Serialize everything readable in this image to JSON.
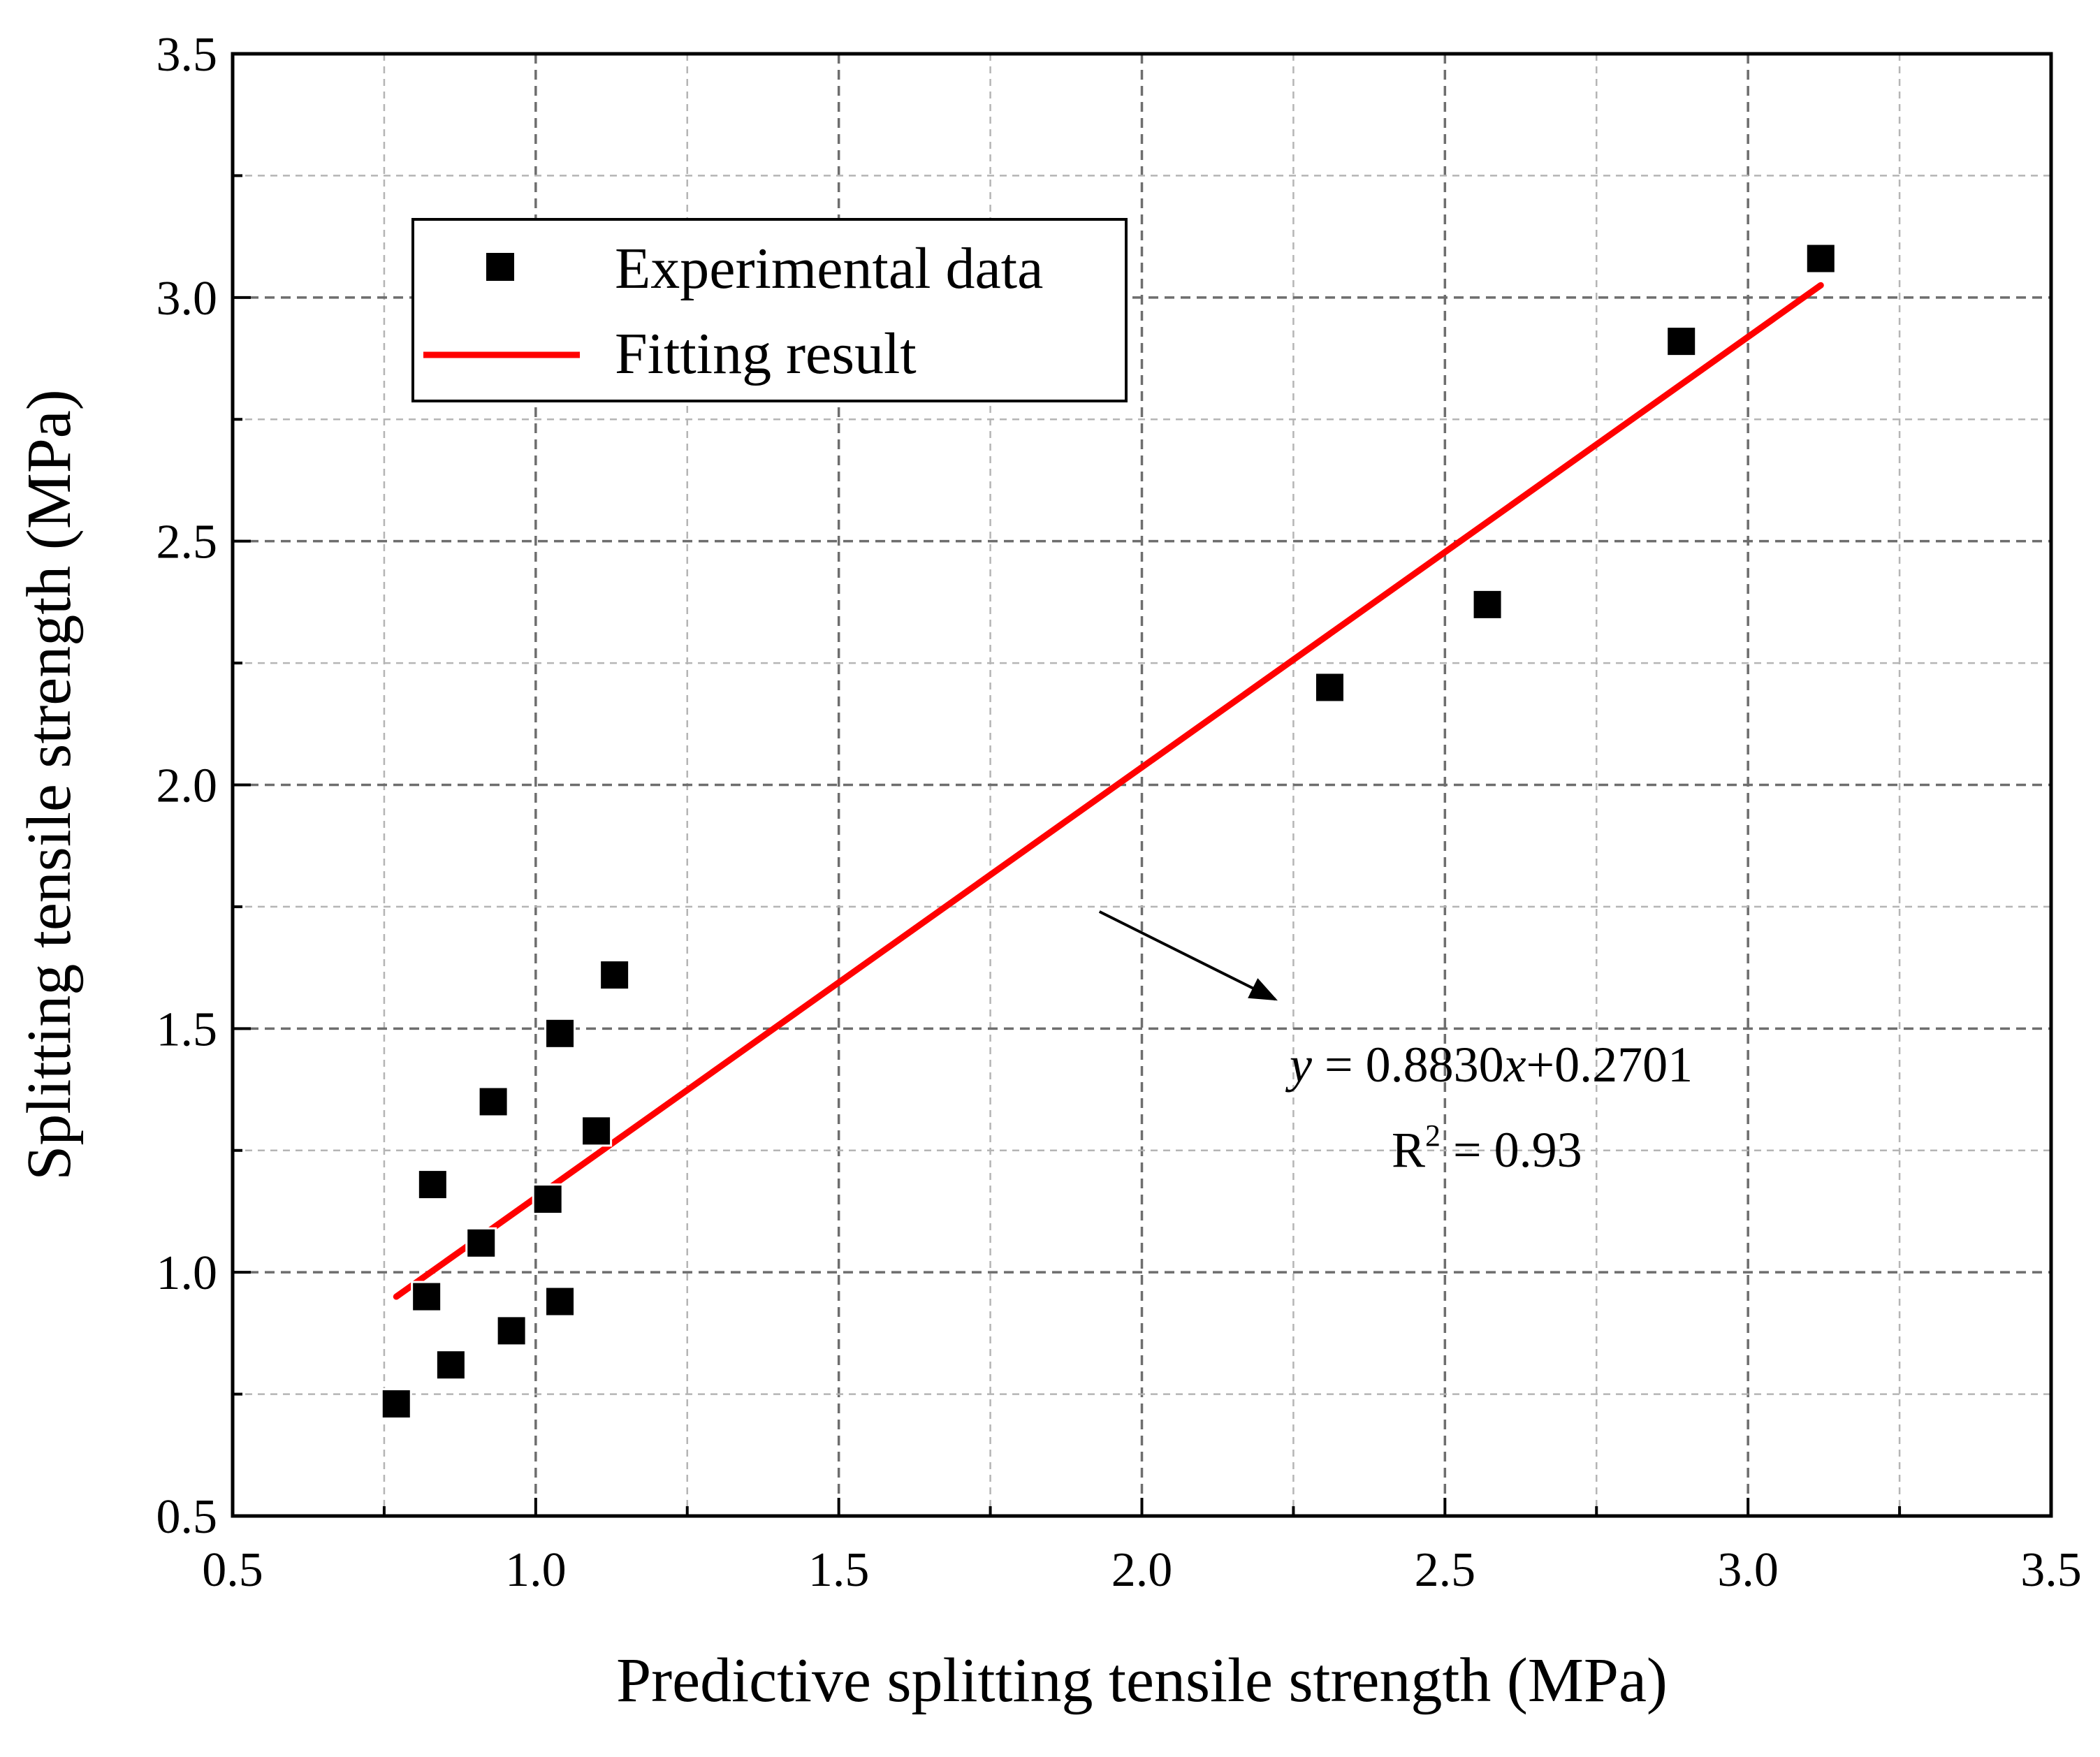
{
  "chart_data": {
    "type": "scatter",
    "xlabel": "Predictive splitting tensile strength (MPa)",
    "ylabel": "Splitting tensile strength (MPa)",
    "xlim": [
      0.5,
      3.5
    ],
    "ylim": [
      0.5,
      3.5
    ],
    "x_ticks": [
      "0.5",
      "1.0",
      "1.5",
      "2.0",
      "2.5",
      "3.0",
      "3.5"
    ],
    "y_ticks": [
      "0.5",
      "1.0",
      "1.5",
      "2.0",
      "2.5",
      "3.0",
      "3.5"
    ],
    "grid": true,
    "legend": {
      "position": "top-left",
      "entries": [
        "Experimental data",
        "Fitting result"
      ]
    },
    "series": [
      {
        "name": "Experimental data",
        "marker": "square",
        "color": "#000000",
        "points": [
          [
            0.77,
            0.73
          ],
          [
            0.82,
            0.95
          ],
          [
            0.83,
            1.18
          ],
          [
            0.86,
            0.81
          ],
          [
            0.91,
            1.06
          ],
          [
            0.93,
            1.35
          ],
          [
            0.96,
            0.88
          ],
          [
            1.02,
            1.15
          ],
          [
            1.04,
            0.94
          ],
          [
            1.04,
            1.49
          ],
          [
            1.1,
            1.29
          ],
          [
            1.13,
            1.61
          ],
          [
            2.31,
            2.2
          ],
          [
            2.57,
            2.37
          ],
          [
            2.89,
            2.91
          ],
          [
            3.12,
            3.08
          ]
        ]
      },
      {
        "name": "Fitting result",
        "type": "line",
        "color": "#ff0000",
        "slope": 0.883,
        "intercept": 0.2701,
        "x_range": [
          0.77,
          3.12
        ]
      }
    ],
    "annotations": {
      "equation_y": "y",
      "equation_mid": " = 0.8830",
      "equation_x": "x",
      "equation_rest": "+0.2701",
      "r2_prefix": "R",
      "r2_sup": "2",
      "r2_value": " = 0.93",
      "arrow_from": [
        1.93,
        1.74
      ],
      "arrow_to": [
        2.22,
        1.56
      ]
    }
  }
}
